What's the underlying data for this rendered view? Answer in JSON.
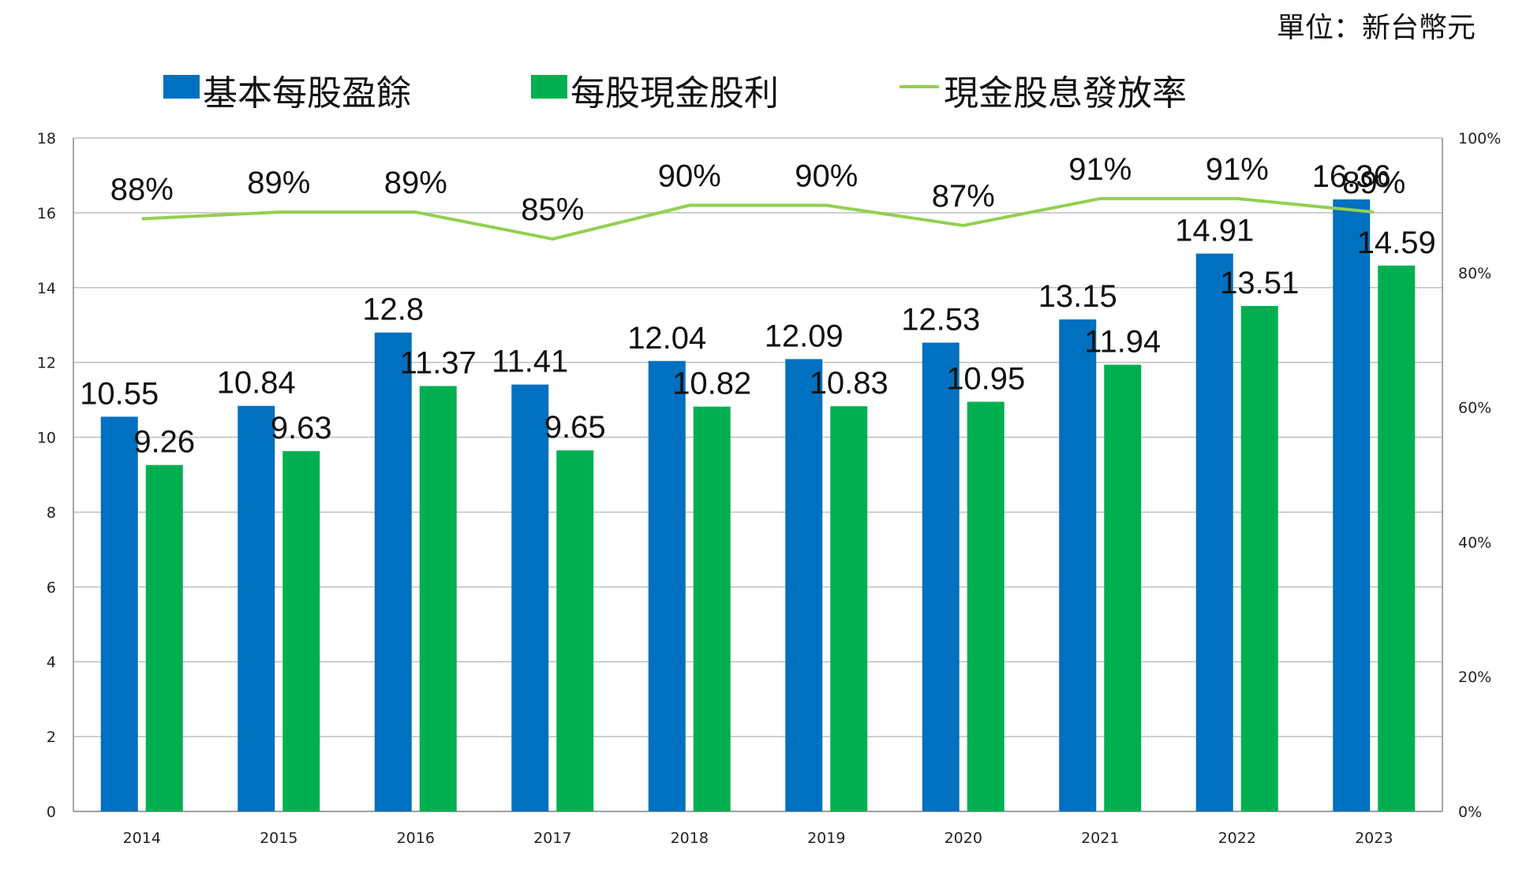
{
  "unit_label": "單位：新台幣元",
  "colors": {
    "eps": "#0070C0",
    "dividend": "#00B050",
    "payout": "#92D050",
    "grid": "#BFBFBF",
    "axis": "#888888"
  },
  "chart_data": {
    "type": "bar",
    "categories": [
      "2014",
      "2015",
      "2016",
      "2017",
      "2018",
      "2019",
      "2020",
      "2021",
      "2022",
      "2023"
    ],
    "series": [
      {
        "name": "基本每股盈餘",
        "type": "bar",
        "axis": "left",
        "values": [
          10.55,
          10.84,
          12.8,
          11.41,
          12.04,
          12.09,
          12.53,
          13.15,
          14.91,
          16.36
        ],
        "labels": [
          "10.55",
          "10.84",
          "12.8",
          "11.41",
          "12.04",
          "12.09",
          "12.53",
          "13.15",
          "14.91",
          "16.36"
        ]
      },
      {
        "name": "每股現金股利",
        "type": "bar",
        "axis": "left",
        "values": [
          9.26,
          9.63,
          11.37,
          9.65,
          10.82,
          10.83,
          10.95,
          11.94,
          13.51,
          14.59
        ],
        "labels": [
          "9.26",
          "9.63",
          "11.37",
          "9.65",
          "10.82",
          "10.83",
          "10.95",
          "11.94",
          "13.51",
          "14.59"
        ]
      },
      {
        "name": "現金股息發放率",
        "type": "line",
        "axis": "right",
        "values": [
          88,
          89,
          89,
          85,
          90,
          90,
          87,
          91,
          91,
          89
        ],
        "labels": [
          "88%",
          "89%",
          "89%",
          "85%",
          "90%",
          "90%",
          "87%",
          "91%",
          "91%",
          "89%"
        ]
      }
    ],
    "ylim": [
      0,
      18
    ],
    "yticks": [
      "0",
      "2",
      "4",
      "6",
      "8",
      "10",
      "12",
      "14",
      "16",
      "18"
    ],
    "y2lim": [
      0,
      100
    ],
    "y2ticks": [
      "0%",
      "20%",
      "40%",
      "60%",
      "80%",
      "100%"
    ],
    "grid": true,
    "legend": "top"
  }
}
